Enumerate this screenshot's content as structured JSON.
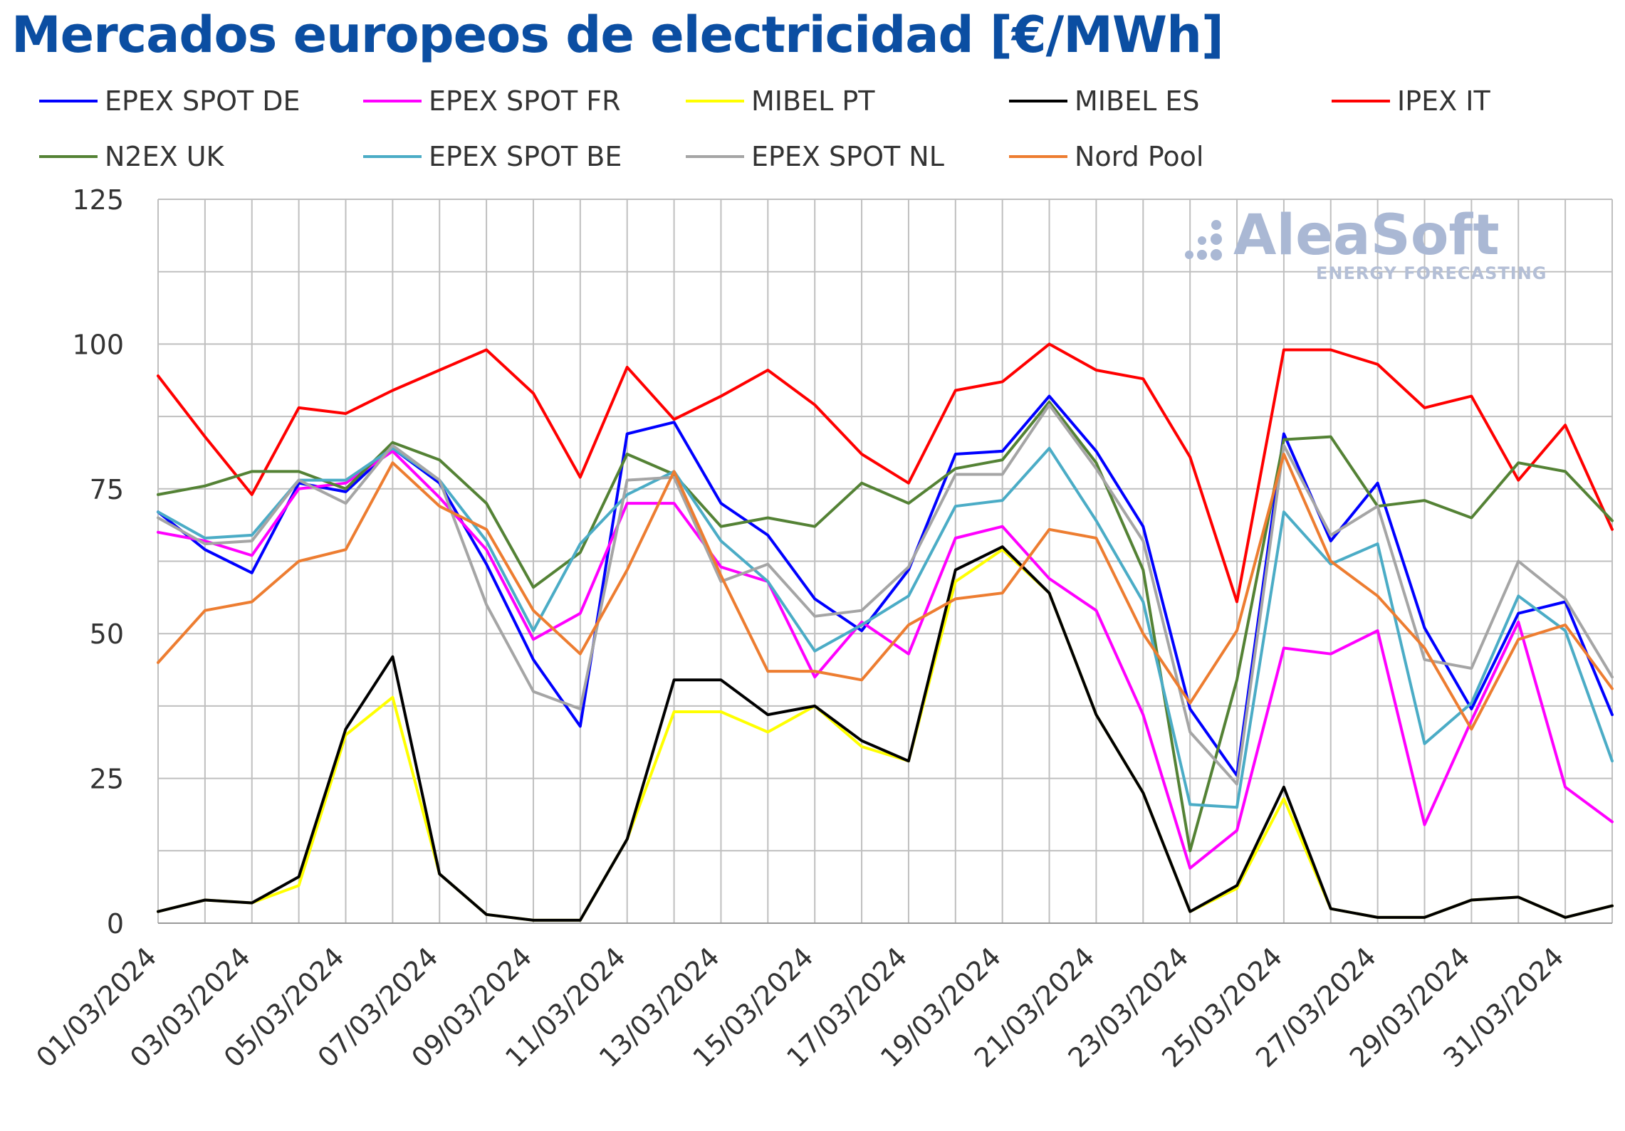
{
  "title": "Mercados europeos de electricidad [€/MWh]",
  "colors": {
    "title": "#0b4ea2",
    "grid": "#bfbfbf",
    "axis": "#999999"
  },
  "watermark": {
    "brand": "AleaSoft",
    "subtitle": "ENERGY FORECASTING"
  },
  "chart_data": {
    "type": "line",
    "title": "Mercados europeos de electricidad [€/MWh]",
    "xlabel": "",
    "ylabel": "",
    "ylim": [
      0,
      125
    ],
    "yticks": [
      0,
      25,
      50,
      75,
      100,
      125
    ],
    "grid": true,
    "legend_position": "top",
    "x": [
      "01/03/2024",
      "02/03/2024",
      "03/03/2024",
      "04/03/2024",
      "05/03/2024",
      "06/03/2024",
      "07/03/2024",
      "08/03/2024",
      "09/03/2024",
      "10/03/2024",
      "11/03/2024",
      "12/03/2024",
      "13/03/2024",
      "14/03/2024",
      "15/03/2024",
      "16/03/2024",
      "17/03/2024",
      "18/03/2024",
      "19/03/2024",
      "20/03/2024",
      "21/03/2024",
      "22/03/2024",
      "23/03/2024",
      "24/03/2024",
      "25/03/2024",
      "26/03/2024",
      "27/03/2024",
      "28/03/2024",
      "29/03/2024",
      "30/03/2024",
      "31/03/2024",
      "01/04/2024"
    ],
    "xtick_labels": [
      "01/03/2024",
      "03/03/2024",
      "05/03/2024",
      "07/03/2024",
      "09/03/2024",
      "11/03/2024",
      "13/03/2024",
      "15/03/2024",
      "17/03/2024",
      "19/03/2024",
      "21/03/2024",
      "23/03/2024",
      "25/03/2024",
      "27/03/2024",
      "29/03/2024",
      "31/03/2024"
    ],
    "series": [
      {
        "name": "EPEX SPOT DE",
        "color": "#0000ff",
        "values": [
          71.0,
          64.5,
          60.5,
          76.0,
          74.5,
          82.0,
          76.0,
          62.0,
          45.5,
          34.0,
          84.5,
          86.5,
          72.5,
          67.0,
          56.0,
          50.5,
          61.0,
          81.0,
          81.5,
          91.0,
          81.5,
          68.5,
          37.0,
          25.5,
          84.5,
          66.0,
          76.0,
          51.0,
          37.0,
          53.5,
          55.5,
          36.0
        ]
      },
      {
        "name": "EPEX SPOT FR",
        "color": "#ff00ff",
        "values": [
          67.5,
          66.0,
          63.5,
          75.0,
          76.0,
          81.5,
          73.5,
          64.5,
          49.0,
          53.5,
          72.5,
          72.5,
          61.5,
          59.0,
          42.5,
          52.0,
          46.5,
          66.5,
          68.5,
          59.5,
          54.0,
          36.0,
          9.5,
          16.0,
          47.5,
          46.5,
          50.5,
          17.0,
          35.0,
          52.0,
          23.5,
          17.5
        ]
      },
      {
        "name": "MIBEL PT",
        "color": "#ffff00",
        "values": [
          2.0,
          4.0,
          3.5,
          6.5,
          32.5,
          39.0,
          8.5,
          1.5,
          0.5,
          0.5,
          14.5,
          36.5,
          36.5,
          33.0,
          37.5,
          30.5,
          28.0,
          59.0,
          64.5,
          57.0,
          36.0,
          22.5,
          2.0,
          6.0,
          21.5,
          2.5,
          1.0,
          1.0,
          4.0,
          4.5,
          1.0,
          3.0
        ]
      },
      {
        "name": "MIBEL ES",
        "color": "#000000",
        "values": [
          2.0,
          4.0,
          3.5,
          8.0,
          33.5,
          46.0,
          8.5,
          1.5,
          0.5,
          0.5,
          14.5,
          42.0,
          42.0,
          36.0,
          37.5,
          31.5,
          28.0,
          61.0,
          65.0,
          57.0,
          36.0,
          22.5,
          2.0,
          6.5,
          23.5,
          2.5,
          1.0,
          1.0,
          4.0,
          4.5,
          1.0,
          3.0
        ]
      },
      {
        "name": "IPEX IT",
        "color": "#ff0000",
        "values": [
          94.5,
          84.0,
          74.0,
          89.0,
          88.0,
          92.0,
          95.5,
          99.0,
          91.5,
          77.0,
          96.0,
          87.0,
          91.0,
          95.5,
          89.5,
          81.0,
          76.0,
          92.0,
          93.5,
          100.0,
          95.5,
          94.0,
          80.5,
          55.5,
          99.0,
          99.0,
          96.5,
          89.0,
          91.0,
          76.5,
          86.0,
          68.0
        ]
      },
      {
        "name": "N2EX UK",
        "color": "#548235",
        "values": [
          74.0,
          75.5,
          78.0,
          78.0,
          75.0,
          83.0,
          80.0,
          72.5,
          58.0,
          64.0,
          81.0,
          77.5,
          68.5,
          70.0,
          68.5,
          76.0,
          72.5,
          78.5,
          80.0,
          90.0,
          79.5,
          61.0,
          12.5,
          42.0,
          83.5,
          84.0,
          72.0,
          73.0,
          70.0,
          79.5,
          78.0,
          69.5
        ]
      },
      {
        "name": "EPEX SPOT BE",
        "color": "#4bacc6",
        "values": [
          71.0,
          66.5,
          67.0,
          76.5,
          76.5,
          82.0,
          76.5,
          66.0,
          50.5,
          65.5,
          74.0,
          78.0,
          66.0,
          59.0,
          47.0,
          51.5,
          56.5,
          72.0,
          73.0,
          82.0,
          69.5,
          55.5,
          20.5,
          20.0,
          71.0,
          62.0,
          65.5,
          31.0,
          38.0,
          56.5,
          50.5,
          28.0
        ]
      },
      {
        "name": "EPEX SPOT NL",
        "color": "#a5a5a5",
        "values": [
          70.0,
          65.5,
          66.0,
          76.5,
          72.5,
          82.5,
          76.5,
          55.0,
          40.0,
          37.0,
          76.5,
          77.0,
          59.0,
          62.0,
          53.0,
          54.0,
          61.5,
          77.5,
          77.5,
          89.5,
          78.5,
          66.0,
          33.0,
          24.0,
          82.5,
          67.0,
          72.0,
          45.5,
          44.0,
          62.5,
          56.0,
          42.5
        ]
      },
      {
        "name": "Nord Pool",
        "color": "#ed7d31",
        "values": [
          45.0,
          54.0,
          55.5,
          62.5,
          64.5,
          79.5,
          72.0,
          68.0,
          54.0,
          46.5,
          61.0,
          78.0,
          60.0,
          43.5,
          43.5,
          42.0,
          51.5,
          56.0,
          57.0,
          68.0,
          66.5,
          50.0,
          38.0,
          50.5,
          81.0,
          62.5,
          56.5,
          47.5,
          33.5,
          49.0,
          51.5,
          40.5
        ]
      }
    ]
  }
}
